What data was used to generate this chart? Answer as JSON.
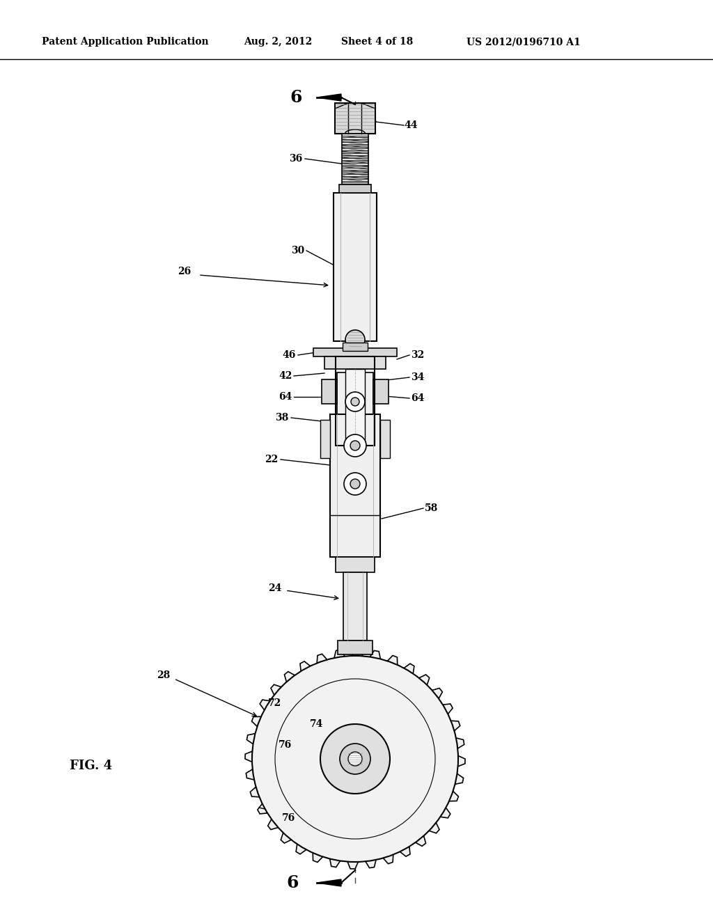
{
  "bg_color": "#ffffff",
  "header_text": "Patent Application Publication",
  "header_date": "Aug. 2, 2012",
  "header_sheet": "Sheet 4 of 18",
  "header_patent": "US 2012/0196710 A1",
  "fig_label": "FIG. 4",
  "line_color": "#000000",
  "figsize": [
    10.24,
    13.2
  ],
  "dpi": 100
}
